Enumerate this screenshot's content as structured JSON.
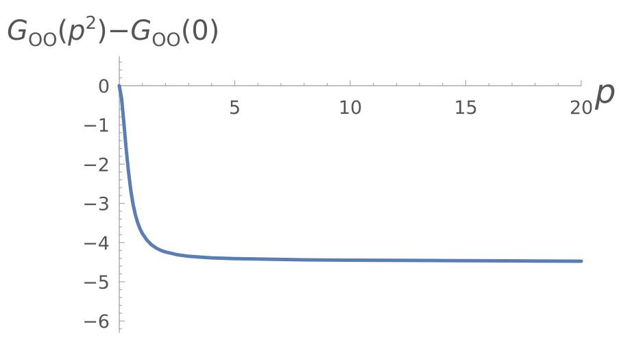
{
  "chart_data": {
    "type": "line",
    "title": "",
    "ylabel": {
      "base": "G",
      "subscript": "OO",
      "open_paren": "(",
      "arg_base": "p",
      "arg_sup": "2",
      "close_paren": ")",
      "minus": "−",
      "base2": "G",
      "subscript2": "OO",
      "tail": "(0)"
    },
    "xlabel": "p",
    "xlim": [
      0,
      20
    ],
    "ylim": [
      -6.3,
      0.75
    ],
    "x_ticks": [
      5,
      10,
      15,
      20
    ],
    "x_tick_labels": [
      "5",
      "10",
      "15",
      "20"
    ],
    "y_ticks": [
      0,
      -1,
      -2,
      -3,
      -4,
      -5,
      -6
    ],
    "y_tick_labels": [
      "0",
      "−1",
      "−2",
      "−3",
      "−4",
      "−5",
      "−6"
    ],
    "grid": false,
    "series": [
      {
        "color": "#5b7db5",
        "x": [
          0,
          0.1,
          0.2,
          0.3,
          0.4,
          0.5,
          0.6,
          0.7,
          0.8,
          0.9,
          1.0,
          1.2,
          1.4,
          1.6,
          1.8,
          2.0,
          2.5,
          3.0,
          3.5,
          4.0,
          5.0,
          6.0,
          7.0,
          8.0,
          10.0,
          12.0,
          14.0,
          16.0,
          18.0,
          20.0
        ],
        "y": [
          0,
          -0.33,
          -0.95,
          -1.62,
          -2.2,
          -2.67,
          -3.03,
          -3.3,
          -3.5,
          -3.65,
          -3.77,
          -3.94,
          -4.06,
          -4.14,
          -4.2,
          -4.24,
          -4.31,
          -4.35,
          -4.37,
          -4.39,
          -4.41,
          -4.42,
          -4.43,
          -4.44,
          -4.45,
          -4.455,
          -4.46,
          -4.465,
          -4.47,
          -4.475
        ]
      }
    ]
  }
}
